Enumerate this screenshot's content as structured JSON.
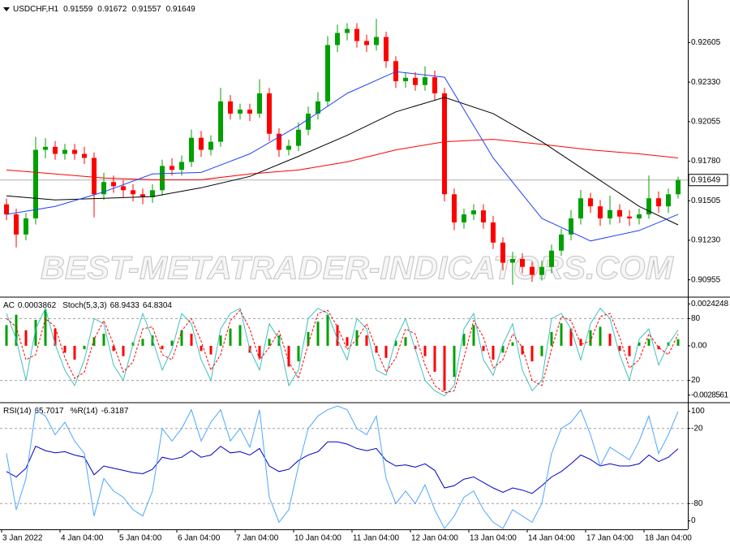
{
  "chart_data": [
    {
      "type": "candlestick",
      "title": "USDCHF,H1",
      "readouts": [
        0.91559,
        0.91672,
        0.91557,
        0.91649
      ],
      "up_color": "#00a000",
      "down_color": "#ff0000",
      "xlim": [
        0,
        70.5
      ],
      "ylim": [
        0.9084,
        0.9289
      ],
      "yticks": [
        0.90955,
        {
          "value": 0.9123,
          "label": "0.91230"
        },
        0.91505,
        {
          "value": 0.9178,
          "label": "0.91780"
        },
        0.92055,
        {
          "value": 0.9233,
          "label": "0.92330"
        },
        0.92605
      ],
      "current_price": 0.91649,
      "watermark": "BEST-METATRADER-INDICATORS.COM",
      "open": [
        0.9148,
        0.9141,
        0.9127,
        0.91382,
        0.91859,
        0.9188,
        0.91831,
        0.91859,
        0.91831,
        0.91803,
        0.9155,
        0.91635,
        0.91606,
        0.91578,
        0.9155,
        0.9153,
        0.91578,
        0.91747,
        0.9172,
        0.91775,
        0.91943,
        0.91859,
        0.91915,
        0.92196,
        0.92111,
        0.92139,
        0.92111,
        0.92252,
        0.91971,
        0.91859,
        0.91887,
        0.91999,
        0.92111,
        0.92196,
        0.92588,
        0.92672,
        0.927,
        0.92616,
        0.92588,
        0.92644,
        0.92476,
        0.92336,
        0.9236,
        0.9231,
        0.92364,
        0.92252,
        0.9155,
        0.91354,
        0.9141,
        0.91438,
        0.91354,
        0.91214,
        0.91074,
        0.911,
        0.91045,
        0.90989,
        0.91045,
        0.91158,
        0.9127,
        0.91382,
        0.91522,
        0.91466,
        0.91382,
        0.9144,
        0.91395,
        0.91382,
        0.9141,
        0.91522,
        0.91466,
        0.9155
      ],
      "high": [
        0.9152,
        0.9145,
        0.9142,
        0.9195,
        0.9194,
        0.9192,
        0.919,
        0.919,
        0.9188,
        0.9184,
        0.917,
        0.9168,
        0.9165,
        0.9162,
        0.9159,
        0.9162,
        0.9179,
        0.918,
        0.9182,
        0.92,
        0.9199,
        0.9196,
        0.9229,
        0.9224,
        0.9218,
        0.9218,
        0.9235,
        0.9229,
        0.9201,
        0.9193,
        0.9205,
        0.9216,
        0.9226,
        0.9265,
        0.9273,
        0.9274,
        0.9274,
        0.9266,
        0.9277,
        0.9268,
        0.9251,
        0.924,
        0.924,
        0.9244,
        0.9241,
        0.9229,
        0.9159,
        0.9145,
        0.9148,
        0.9148,
        0.914,
        0.9125,
        0.9115,
        0.9114,
        0.9108,
        0.9109,
        0.912,
        0.9131,
        0.9144,
        0.9158,
        0.9156,
        0.9151,
        0.9154,
        0.9148,
        0.9144,
        0.9145,
        0.9168,
        0.9157,
        0.9159,
        0.91672
      ],
      "low": [
        0.9137,
        0.9118,
        0.9123,
        0.9134,
        0.918,
        0.9179,
        0.9179,
        0.9179,
        0.9176,
        0.9139,
        0.9151,
        0.9156,
        0.9153,
        0.915,
        0.9148,
        0.9149,
        0.9154,
        0.9168,
        0.9168,
        0.9174,
        0.9181,
        0.9182,
        0.9188,
        0.9207,
        0.9207,
        0.9206,
        0.9208,
        0.9192,
        0.9181,
        0.9182,
        0.9185,
        0.9196,
        0.9207,
        0.9216,
        0.9254,
        0.9262,
        0.9257,
        0.9254,
        0.9255,
        0.9243,
        0.9229,
        0.9229,
        0.9227,
        0.9227,
        0.922,
        0.915,
        0.913,
        0.9131,
        0.9137,
        0.9131,
        0.9117,
        0.9102,
        0.9092,
        0.91,
        0.9094,
        0.9095,
        0.91,
        0.9112,
        0.9123,
        0.9134,
        0.9142,
        0.9133,
        0.9134,
        0.9135,
        0.9133,
        0.9134,
        0.9138,
        0.9142,
        0.9142,
        0.9152
      ],
      "close": [
        0.9141,
        0.9127,
        0.91382,
        0.91859,
        0.9188,
        0.91831,
        0.91859,
        0.91831,
        0.91803,
        0.9155,
        0.91635,
        0.91606,
        0.91578,
        0.9155,
        0.9153,
        0.91578,
        0.91747,
        0.9172,
        0.91775,
        0.91943,
        0.91859,
        0.91915,
        0.92196,
        0.92111,
        0.92139,
        0.92111,
        0.92252,
        0.91971,
        0.91859,
        0.91887,
        0.91999,
        0.92111,
        0.92196,
        0.92588,
        0.92672,
        0.927,
        0.92616,
        0.92588,
        0.92644,
        0.92476,
        0.92336,
        0.9236,
        0.9231,
        0.92364,
        0.92252,
        0.9155,
        0.91354,
        0.9141,
        0.91438,
        0.91354,
        0.91214,
        0.91074,
        0.911,
        0.91045,
        0.90989,
        0.91045,
        0.91158,
        0.9127,
        0.91382,
        0.91522,
        0.91466,
        0.91382,
        0.9144,
        0.91395,
        0.91382,
        0.9141,
        0.91522,
        0.91466,
        0.9155,
        0.91649
      ],
      "overlays": [
        {
          "color": "#ff0000",
          "x": [
            0.5,
            5.5,
            10.5,
            15.5,
            20.5,
            25.5,
            30.5,
            35.5,
            40.5,
            45.5,
            50.5,
            55.5,
            60.5,
            65.5,
            69.5
          ],
          "values": [
            0.91719,
            0.91691,
            0.91663,
            0.91651,
            0.91651,
            0.91691,
            0.91719,
            0.91775,
            0.91859,
            0.91915,
            0.91932,
            0.91898,
            0.91859,
            0.91831,
            0.91803
          ]
        },
        {
          "color": "#000000",
          "x": [
            0.5,
            5.5,
            10.5,
            15.5,
            20.5,
            25.5,
            30.5,
            35.5,
            40.5,
            45.5,
            50.5,
            55.5,
            60.5,
            65.5,
            69.5
          ],
          "values": [
            0.91539,
            0.91511,
            0.91522,
            0.91534,
            0.91595,
            0.91674,
            0.91814,
            0.9196,
            0.92123,
            0.92224,
            0.92111,
            0.91915,
            0.91691,
            0.91466,
            0.91337
          ]
        },
        {
          "color": "#2040ff",
          "x": [
            0.5,
            5.5,
            10.5,
            15.5,
            20.5,
            25.5,
            30.5,
            35.5,
            40.5,
            45.5,
            50.5,
            55.5,
            60.5,
            65.5,
            69.5
          ],
          "values": [
            0.9141,
            0.91466,
            0.91567,
            0.91691,
            0.91702,
            0.91831,
            0.92027,
            0.92252,
            0.92403,
            0.92364,
            0.91803,
            0.91382,
            0.91225,
            0.91298,
            0.9141
          ]
        }
      ]
    },
    {
      "type": "oscillator",
      "xlim": [
        0,
        70.5
      ],
      "ylim": [
        0,
        100
      ],
      "yticks": [
        20,
        80
      ],
      "y2lim": [
        -0.0032,
        0.00277
      ],
      "y2ticks": [
        -0.0028561,
        {
          "value": 0,
          "label": "0.00"
        },
        0.0024248
      ],
      "grid": "y",
      "series": [
        {
          "name": "AC",
          "readout": 0.0003862,
          "style": "histogram",
          "axis": "y2",
          "up_color": "#00a000",
          "down_color": "#ff0000",
          "values": [
            0.0012,
            0.0018,
            0.0009,
            0.0015,
            0.0021,
            0.001,
            -0.0004,
            -0.0008,
            -0.0002,
            0.0005,
            0.0007,
            -0.0003,
            -0.0006,
            0.0002,
            0.0004,
            0.0006,
            -0.0002,
            0.0003,
            0.0009,
            0.0007,
            -0.0003,
            -0.0005,
            0.0006,
            0.001,
            0.0012,
            -0.0004,
            -0.0007,
            0.0004,
            0.0006,
            -0.0012,
            -0.0009,
            0.0008,
            0.0014,
            0.0018,
            0.0012,
            0.0005,
            0.0009,
            0.0006,
            -0.0004,
            -0.0007,
            0.0003,
            0.0005,
            -0.0002,
            -0.0006,
            -0.0015,
            -0.0026,
            -0.0018,
            0.0007,
            0.0012,
            -0.0003,
            -0.0008,
            -0.0004,
            0.0002,
            -0.0005,
            -0.0009,
            -0.0006,
            0.0008,
            0.0013,
            0.001,
            0.0004,
            0.0009,
            0.0011,
            0.0007,
            -0.0003,
            -0.0006,
            0.0002,
            0.0004,
            -0.0002,
            0.0002,
            0.0003862
          ]
        },
        {
          "name": "Stoch(5,3,3)",
          "readout": 68.9433,
          "style": "line",
          "color": "#40c0c0",
          "values": [
            85,
            60,
            20,
            70,
            90,
            55,
            30,
            15,
            40,
            80,
            75,
            35,
            20,
            55,
            85,
            60,
            30,
            50,
            85,
            75,
            40,
            20,
            70,
            85,
            90,
            50,
            30,
            75,
            60,
            15,
            30,
            80,
            90,
            85,
            60,
            40,
            80,
            70,
            30,
            25,
            60,
            80,
            50,
            20,
            10,
            5,
            15,
            70,
            85,
            40,
            25,
            55,
            75,
            30,
            10,
            20,
            80,
            85,
            70,
            40,
            75,
            90,
            80,
            45,
            20,
            60,
            70,
            35,
            55,
            68.9433
          ]
        },
        {
          "readout": 64.8304,
          "style": "dashed",
          "color": "#ff0000",
          "values": [
            80,
            72,
            40,
            45,
            80,
            72,
            42,
            22,
            28,
            60,
            78,
            55,
            28,
            38,
            70,
            72,
            45,
            40,
            68,
            80,
            58,
            30,
            45,
            78,
            88,
            70,
            40,
            52,
            68,
            38,
            22,
            55,
            85,
            88,
            72,
            50,
            60,
            75,
            50,
            28,
            42,
            70,
            65,
            35,
            15,
            8,
            10,
            42,
            78,
            62,
            32,
            40,
            65,
            52,
            20,
            15,
            50,
            82,
            78,
            55,
            58,
            82,
            85,
            62,
            32,
            40,
            65,
            52,
            45,
            64.8304
          ]
        }
      ]
    },
    {
      "type": "oscillator",
      "xlim": [
        0,
        70.5
      ],
      "ylim": [
        -7,
        107
      ],
      "yticks": [
        0,
        100
      ],
      "y2lim": [
        -100,
        0
      ],
      "y2ticks": [
        -80,
        -20
      ],
      "grid": "y2",
      "xticks": [
        {
          "value": 0,
          "label": "3 Jan 2022"
        },
        {
          "value": 6,
          "label": "4 Jan 04:00"
        },
        {
          "value": 12,
          "label": "5 Jan 04:00"
        },
        {
          "value": 18,
          "label": "6 Jan 04:00"
        },
        {
          "value": 24,
          "label": "7 Jan 04:00"
        },
        {
          "value": 30,
          "label": "10 Jan 04:00"
        },
        {
          "value": 36,
          "label": "11 Jan 04:00"
        },
        {
          "value": 42,
          "label": "12 Jan 04:00"
        },
        {
          "value": 48,
          "label": "13 Jan 04:00"
        },
        {
          "value": 54,
          "label": "14 Jan 04:00"
        },
        {
          "value": 60,
          "label": "17 Jan 04:00"
        },
        {
          "value": 66,
          "label": "18 Jan 04:00"
        }
      ],
      "series": [
        {
          "name": "RSI(14)",
          "readout": 65.7017,
          "style": "line",
          "color": "#0000c8",
          "values": [
            45,
            40,
            48,
            68,
            64,
            62,
            63,
            60,
            58,
            42,
            50,
            48,
            46,
            44,
            43,
            47,
            58,
            56,
            58,
            64,
            58,
            60,
            68,
            62,
            63,
            60,
            66,
            50,
            45,
            47,
            55,
            60,
            63,
            72,
            72,
            70,
            66,
            64,
            66,
            55,
            50,
            51,
            49,
            52,
            46,
            30,
            32,
            38,
            40,
            35,
            30,
            26,
            30,
            28,
            25,
            32,
            40,
            45,
            52,
            60,
            56,
            50,
            52,
            50,
            50,
            52,
            60,
            54,
            58,
            65.7017
          ]
        },
        {
          "name": "%R(14)",
          "readout": -6.3187,
          "style": "line",
          "axis": "y2",
          "color": "#4da6ff",
          "values": [
            -40,
            -85,
            -60,
            -5,
            -10,
            -25,
            -15,
            -30,
            -40,
            -90,
            -60,
            -70,
            -75,
            -85,
            -90,
            -70,
            -20,
            -30,
            -20,
            -5,
            -30,
            -15,
            -5,
            -30,
            -20,
            -35,
            -5,
            -75,
            -95,
            -85,
            -50,
            -20,
            -10,
            -5,
            -2,
            -5,
            -20,
            -25,
            -10,
            -60,
            -80,
            -70,
            -80,
            -65,
            -85,
            -100,
            -90,
            -75,
            -70,
            -85,
            -95,
            -100,
            -85,
            -90,
            -95,
            -80,
            -40,
            -20,
            -15,
            -5,
            -25,
            -50,
            -35,
            -40,
            -45,
            -30,
            -10,
            -40,
            -25,
            -6.3187
          ]
        }
      ]
    }
  ]
}
